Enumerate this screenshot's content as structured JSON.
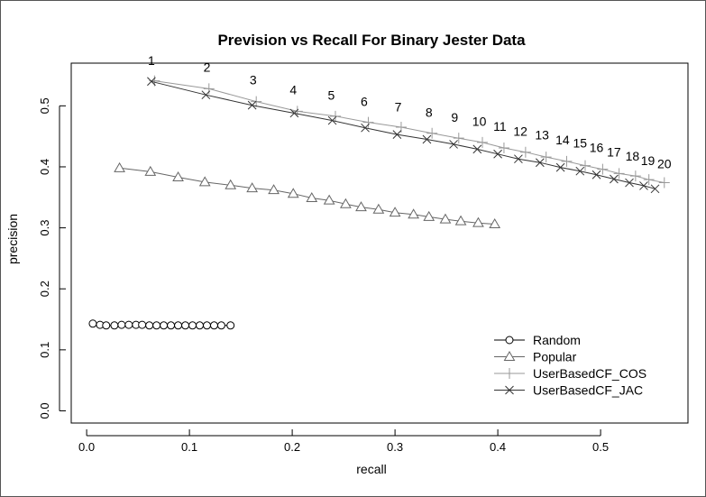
{
  "chart_data": {
    "type": "line",
    "title": "Prevision vs Recall For Binary Jester Data",
    "xlabel": "recall",
    "ylabel": "precision",
    "xlim": [
      -0.015,
      0.585
    ],
    "ylim": [
      -0.02,
      0.57
    ],
    "xticks": [
      "0.0",
      "0.1",
      "0.2",
      "0.3",
      "0.4",
      "0.5"
    ],
    "yticks": [
      "0.0",
      "0.1",
      "0.2",
      "0.3",
      "0.4",
      "0.5"
    ],
    "legend_position": "bottom-right",
    "series": [
      {
        "name": "Random",
        "marker": "circle",
        "color": "#000000",
        "points": [
          [
            0.006,
            0.143
          ],
          [
            0.013,
            0.141
          ],
          [
            0.019,
            0.14
          ],
          [
            0.027,
            0.14
          ],
          [
            0.034,
            0.141
          ],
          [
            0.041,
            0.141
          ],
          [
            0.048,
            0.141
          ],
          [
            0.054,
            0.141
          ],
          [
            0.061,
            0.14
          ],
          [
            0.068,
            0.14
          ],
          [
            0.075,
            0.14
          ],
          [
            0.082,
            0.14
          ],
          [
            0.089,
            0.14
          ],
          [
            0.096,
            0.14
          ],
          [
            0.103,
            0.14
          ],
          [
            0.11,
            0.14
          ],
          [
            0.117,
            0.14
          ],
          [
            0.124,
            0.14
          ],
          [
            0.131,
            0.14
          ],
          [
            0.14,
            0.14
          ]
        ]
      },
      {
        "name": "Popular",
        "marker": "triangle",
        "color": "#666666",
        "points": [
          [
            0.032,
            0.398
          ],
          [
            0.062,
            0.392
          ],
          [
            0.089,
            0.383
          ],
          [
            0.115,
            0.375
          ],
          [
            0.14,
            0.37
          ],
          [
            0.161,
            0.365
          ],
          [
            0.182,
            0.362
          ],
          [
            0.201,
            0.356
          ],
          [
            0.219,
            0.349
          ],
          [
            0.236,
            0.345
          ],
          [
            0.252,
            0.339
          ],
          [
            0.267,
            0.334
          ],
          [
            0.284,
            0.33
          ],
          [
            0.3,
            0.325
          ],
          [
            0.318,
            0.322
          ],
          [
            0.333,
            0.318
          ],
          [
            0.349,
            0.314
          ],
          [
            0.364,
            0.311
          ],
          [
            0.381,
            0.308
          ],
          [
            0.397,
            0.306
          ]
        ]
      },
      {
        "name": "UserBasedCF_COS",
        "marker": "plus",
        "color": "#999999",
        "points": [
          [
            0.066,
            0.541
          ],
          [
            0.119,
            0.528
          ],
          [
            0.165,
            0.507
          ],
          [
            0.205,
            0.491
          ],
          [
            0.242,
            0.483
          ],
          [
            0.274,
            0.473
          ],
          [
            0.306,
            0.465
          ],
          [
            0.336,
            0.455
          ],
          [
            0.362,
            0.447
          ],
          [
            0.385,
            0.44
          ],
          [
            0.406,
            0.431
          ],
          [
            0.427,
            0.424
          ],
          [
            0.447,
            0.416
          ],
          [
            0.467,
            0.409
          ],
          [
            0.485,
            0.402
          ],
          [
            0.502,
            0.396
          ],
          [
            0.518,
            0.389
          ],
          [
            0.534,
            0.385
          ],
          [
            0.547,
            0.379
          ],
          [
            0.562,
            0.374
          ]
        ]
      },
      {
        "name": "UserBasedCF_JAC",
        "marker": "x",
        "color": "#333333",
        "points": [
          [
            0.063,
            0.54
          ],
          [
            0.116,
            0.518
          ],
          [
            0.161,
            0.501
          ],
          [
            0.202,
            0.488
          ],
          [
            0.239,
            0.476
          ],
          [
            0.271,
            0.464
          ],
          [
            0.302,
            0.453
          ],
          [
            0.331,
            0.445
          ],
          [
            0.357,
            0.437
          ],
          [
            0.38,
            0.429
          ],
          [
            0.4,
            0.421
          ],
          [
            0.42,
            0.413
          ],
          [
            0.441,
            0.407
          ],
          [
            0.461,
            0.399
          ],
          [
            0.48,
            0.393
          ],
          [
            0.496,
            0.387
          ],
          [
            0.513,
            0.38
          ],
          [
            0.528,
            0.374
          ],
          [
            0.542,
            0.369
          ],
          [
            0.553,
            0.364
          ]
        ]
      }
    ],
    "point_labels": {
      "texts": [
        "1",
        "2",
        "3",
        "4",
        "5",
        "6",
        "7",
        "8",
        "9",
        "10",
        "11",
        "12",
        "13",
        "14",
        "15",
        "16",
        "17",
        "18",
        "19",
        "20"
      ],
      "positions": [
        [
          0.063,
          0.567
        ],
        [
          0.117,
          0.556
        ],
        [
          0.162,
          0.535
        ],
        [
          0.201,
          0.519
        ],
        [
          0.238,
          0.51
        ],
        [
          0.27,
          0.5
        ],
        [
          0.303,
          0.491
        ],
        [
          0.333,
          0.482
        ],
        [
          0.358,
          0.474
        ],
        [
          0.382,
          0.467
        ],
        [
          0.402,
          0.459
        ],
        [
          0.422,
          0.451
        ],
        [
          0.443,
          0.445
        ],
        [
          0.463,
          0.437
        ],
        [
          0.48,
          0.432
        ],
        [
          0.496,
          0.424
        ],
        [
          0.513,
          0.417
        ],
        [
          0.531,
          0.41
        ],
        [
          0.546,
          0.403
        ],
        [
          0.562,
          0.398
        ]
      ]
    }
  }
}
